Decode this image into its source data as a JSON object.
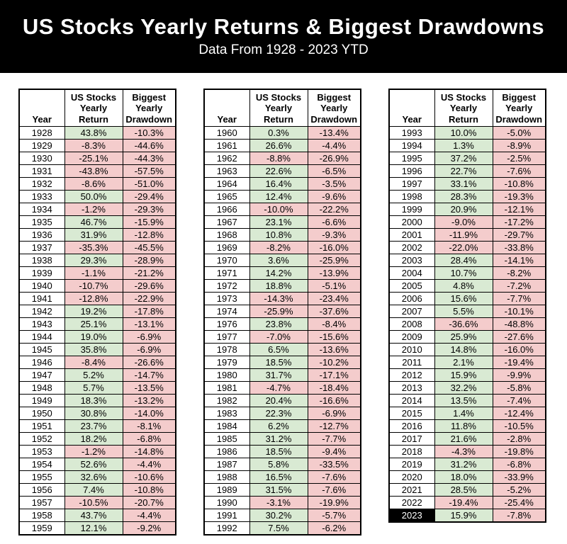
{
  "chart_data": {
    "type": "table",
    "title": "US Stocks Yearly Returns & Biggest Drawdowns",
    "subtitle": "Data From 1928 - 2023 YTD",
    "columns": [
      "Year",
      "US Stocks Yearly Return",
      "Biggest Yearly Drawdown"
    ],
    "highlight_year": "2023",
    "column_groups": [
      {
        "rows": [
          [
            "1928",
            "43.8%",
            "-10.3%"
          ],
          [
            "1929",
            "-8.3%",
            "-44.6%"
          ],
          [
            "1930",
            "-25.1%",
            "-44.3%"
          ],
          [
            "1931",
            "-43.8%",
            "-57.5%"
          ],
          [
            "1932",
            "-8.6%",
            "-51.0%"
          ],
          [
            "1933",
            "50.0%",
            "-29.4%"
          ],
          [
            "1934",
            "-1.2%",
            "-29.3%"
          ],
          [
            "1935",
            "46.7%",
            "-15.9%"
          ],
          [
            "1936",
            "31.9%",
            "-12.8%"
          ],
          [
            "1937",
            "-35.3%",
            "-45.5%"
          ],
          [
            "1938",
            "29.3%",
            "-28.9%"
          ],
          [
            "1939",
            "-1.1%",
            "-21.2%"
          ],
          [
            "1940",
            "-10.7%",
            "-29.6%"
          ],
          [
            "1941",
            "-12.8%",
            "-22.9%"
          ],
          [
            "1942",
            "19.2%",
            "-17.8%"
          ],
          [
            "1943",
            "25.1%",
            "-13.1%"
          ],
          [
            "1944",
            "19.0%",
            "-6.9%"
          ],
          [
            "1945",
            "35.8%",
            "-6.9%"
          ],
          [
            "1946",
            "-8.4%",
            "-26.6%"
          ],
          [
            "1947",
            "5.2%",
            "-14.7%"
          ],
          [
            "1948",
            "5.7%",
            "-13.5%"
          ],
          [
            "1949",
            "18.3%",
            "-13.2%"
          ],
          [
            "1950",
            "30.8%",
            "-14.0%"
          ],
          [
            "1951",
            "23.7%",
            "-8.1%"
          ],
          [
            "1952",
            "18.2%",
            "-6.8%"
          ],
          [
            "1953",
            "-1.2%",
            "-14.8%"
          ],
          [
            "1954",
            "52.6%",
            "-4.4%"
          ],
          [
            "1955",
            "32.6%",
            "-10.6%"
          ],
          [
            "1956",
            "7.4%",
            "-10.8%"
          ],
          [
            "1957",
            "-10.5%",
            "-20.7%"
          ],
          [
            "1958",
            "43.7%",
            "-4.4%"
          ],
          [
            "1959",
            "12.1%",
            "-9.2%"
          ]
        ]
      },
      {
        "rows": [
          [
            "1960",
            "0.3%",
            "-13.4%"
          ],
          [
            "1961",
            "26.6%",
            "-4.4%"
          ],
          [
            "1962",
            "-8.8%",
            "-26.9%"
          ],
          [
            "1963",
            "22.6%",
            "-6.5%"
          ],
          [
            "1964",
            "16.4%",
            "-3.5%"
          ],
          [
            "1965",
            "12.4%",
            "-9.6%"
          ],
          [
            "1966",
            "-10.0%",
            "-22.2%"
          ],
          [
            "1967",
            "23.1%",
            "-6.6%"
          ],
          [
            "1968",
            "10.8%",
            "-9.3%"
          ],
          [
            "1969",
            "-8.2%",
            "-16.0%"
          ],
          [
            "1970",
            "3.6%",
            "-25.9%"
          ],
          [
            "1971",
            "14.2%",
            "-13.9%"
          ],
          [
            "1972",
            "18.8%",
            "-5.1%"
          ],
          [
            "1973",
            "-14.3%",
            "-23.4%"
          ],
          [
            "1974",
            "-25.9%",
            "-37.6%"
          ],
          [
            "1976",
            "23.8%",
            "-8.4%"
          ],
          [
            "1977",
            "-7.0%",
            "-15.6%"
          ],
          [
            "1978",
            "6.5%",
            "-13.6%"
          ],
          [
            "1979",
            "18.5%",
            "-10.2%"
          ],
          [
            "1980",
            "31.7%",
            "-17.1%"
          ],
          [
            "1981",
            "-4.7%",
            "-18.4%"
          ],
          [
            "1982",
            "20.4%",
            "-16.6%"
          ],
          [
            "1983",
            "22.3%",
            "-6.9%"
          ],
          [
            "1984",
            "6.2%",
            "-12.7%"
          ],
          [
            "1985",
            "31.2%",
            "-7.7%"
          ],
          [
            "1986",
            "18.5%",
            "-9.4%"
          ],
          [
            "1987",
            "5.8%",
            "-33.5%"
          ],
          [
            "1988",
            "16.5%",
            "-7.6%"
          ],
          [
            "1989",
            "31.5%",
            "-7.6%"
          ],
          [
            "1990",
            "-3.1%",
            "-19.9%"
          ],
          [
            "1991",
            "30.2%",
            "-5.7%"
          ],
          [
            "1992",
            "7.5%",
            "-6.2%"
          ]
        ]
      },
      {
        "rows": [
          [
            "1993",
            "10.0%",
            "-5.0%"
          ],
          [
            "1994",
            "1.3%",
            "-8.9%"
          ],
          [
            "1995",
            "37.2%",
            "-2.5%"
          ],
          [
            "1996",
            "22.7%",
            "-7.6%"
          ],
          [
            "1997",
            "33.1%",
            "-10.8%"
          ],
          [
            "1998",
            "28.3%",
            "-19.3%"
          ],
          [
            "1999",
            "20.9%",
            "-12.1%"
          ],
          [
            "2000",
            "-9.0%",
            "-17.2%"
          ],
          [
            "2001",
            "-11.9%",
            "-29.7%"
          ],
          [
            "2002",
            "-22.0%",
            "-33.8%"
          ],
          [
            "2003",
            "28.4%",
            "-14.1%"
          ],
          [
            "2004",
            "10.7%",
            "-8.2%"
          ],
          [
            "2005",
            "4.8%",
            "-7.2%"
          ],
          [
            "2006",
            "15.6%",
            "-7.7%"
          ],
          [
            "2007",
            "5.5%",
            "-10.1%"
          ],
          [
            "2008",
            "-36.6%",
            "-48.8%"
          ],
          [
            "2009",
            "25.9%",
            "-27.6%"
          ],
          [
            "2010",
            "14.8%",
            "-16.0%"
          ],
          [
            "2011",
            "2.1%",
            "-19.4%"
          ],
          [
            "2012",
            "15.9%",
            "-9.9%"
          ],
          [
            "2013",
            "32.2%",
            "-5.8%"
          ],
          [
            "2014",
            "13.5%",
            "-7.4%"
          ],
          [
            "2015",
            "1.4%",
            "-12.4%"
          ],
          [
            "2016",
            "11.8%",
            "-10.5%"
          ],
          [
            "2017",
            "21.6%",
            "-2.8%"
          ],
          [
            "2018",
            "-4.3%",
            "-19.8%"
          ],
          [
            "2019",
            "31.2%",
            "-6.8%"
          ],
          [
            "2020",
            "18.0%",
            "-33.9%"
          ],
          [
            "2021",
            "28.5%",
            "-5.2%"
          ],
          [
            "2022",
            "-19.4%",
            "-25.4%"
          ],
          [
            "2023",
            "15.9%",
            "-7.8%"
          ]
        ]
      }
    ]
  },
  "colors": {
    "banner_bg": "#000000",
    "banner_text": "#ffffff",
    "positive_cell_bg": "#d9ead3",
    "negative_cell_bg": "#f4cccc",
    "year_cell_bg": "#ffffff",
    "highlight_year_bg": "#000000",
    "highlight_year_text": "#ffffff",
    "grid_line": "#000000",
    "page_bg": "#ffffff"
  }
}
